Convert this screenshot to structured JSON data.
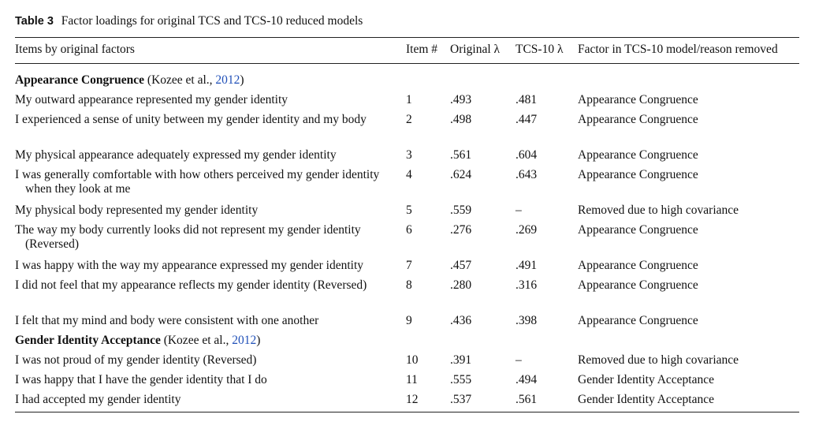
{
  "caption": {
    "label": "Table 3",
    "text": "Factor loadings for original TCS and TCS-10 reduced models"
  },
  "columns": [
    "Items by original factors",
    "Item #",
    "Original λ",
    "TCS-10 λ",
    "Factor in TCS-10 model/reason removed"
  ],
  "groups": [
    {
      "name": "Appearance Congruence",
      "cite_prefix": " (Kozee et al., ",
      "cite_year": "2012",
      "cite_suffix": ")",
      "rows": [
        {
          "item": "My outward appearance represented my gender identity",
          "num": "1",
          "orig": ".493",
          "tcs": ".481",
          "factor": "Appearance Congruence"
        },
        {
          "item": "I experienced a sense of unity between my gender identity and my body",
          "num": "2",
          "orig": ".498",
          "tcs": ".447",
          "factor": "Appearance Congruence"
        },
        {
          "item": "My physical appearance adequately expressed my gender identity",
          "num": "3",
          "orig": ".561",
          "tcs": ".604",
          "factor": "Appearance Congruence"
        },
        {
          "item": "I was generally comfortable with how others perceived my gender identity when they look at me",
          "num": "4",
          "orig": ".624",
          "tcs": ".643",
          "factor": "Appearance Congruence"
        },
        {
          "item": "My physical body represented my gender identity",
          "num": "5",
          "orig": ".559",
          "tcs": "–",
          "factor": "Removed due to high covariance"
        },
        {
          "item": "The way my body currently looks did not represent my gender identity (Reversed)",
          "num": "6",
          "orig": ".276",
          "tcs": ".269",
          "factor": "Appearance Congruence"
        },
        {
          "item": "I was happy with the way my appearance expressed my gender identity",
          "num": "7",
          "orig": ".457",
          "tcs": ".491",
          "factor": "Appearance Congruence"
        },
        {
          "item": "I did not feel that my appearance reflects my gender identity (Reversed)",
          "num": "8",
          "orig": ".280",
          "tcs": ".316",
          "factor": "Appearance Congruence"
        },
        {
          "item": "I felt that my mind and body were consistent with one another",
          "num": "9",
          "orig": ".436",
          "tcs": ".398",
          "factor": "Appearance Congruence"
        }
      ]
    },
    {
      "name": "Gender Identity Acceptance",
      "cite_prefix": " (Kozee et al., ",
      "cite_year": "2012",
      "cite_suffix": ")",
      "rows": [
        {
          "item": "I was not proud of my gender identity (Reversed)",
          "num": "10",
          "orig": ".391",
          "tcs": "–",
          "factor": "Removed due to high covariance"
        },
        {
          "item": "I was happy that I have the gender identity that I do",
          "num": "11",
          "orig": ".555",
          "tcs": ".494",
          "factor": "Gender Identity Acceptance"
        },
        {
          "item": "I had accepted my gender identity",
          "num": "12",
          "orig": ".537",
          "tcs": ".561",
          "factor": "Gender Identity Acceptance"
        }
      ]
    }
  ]
}
